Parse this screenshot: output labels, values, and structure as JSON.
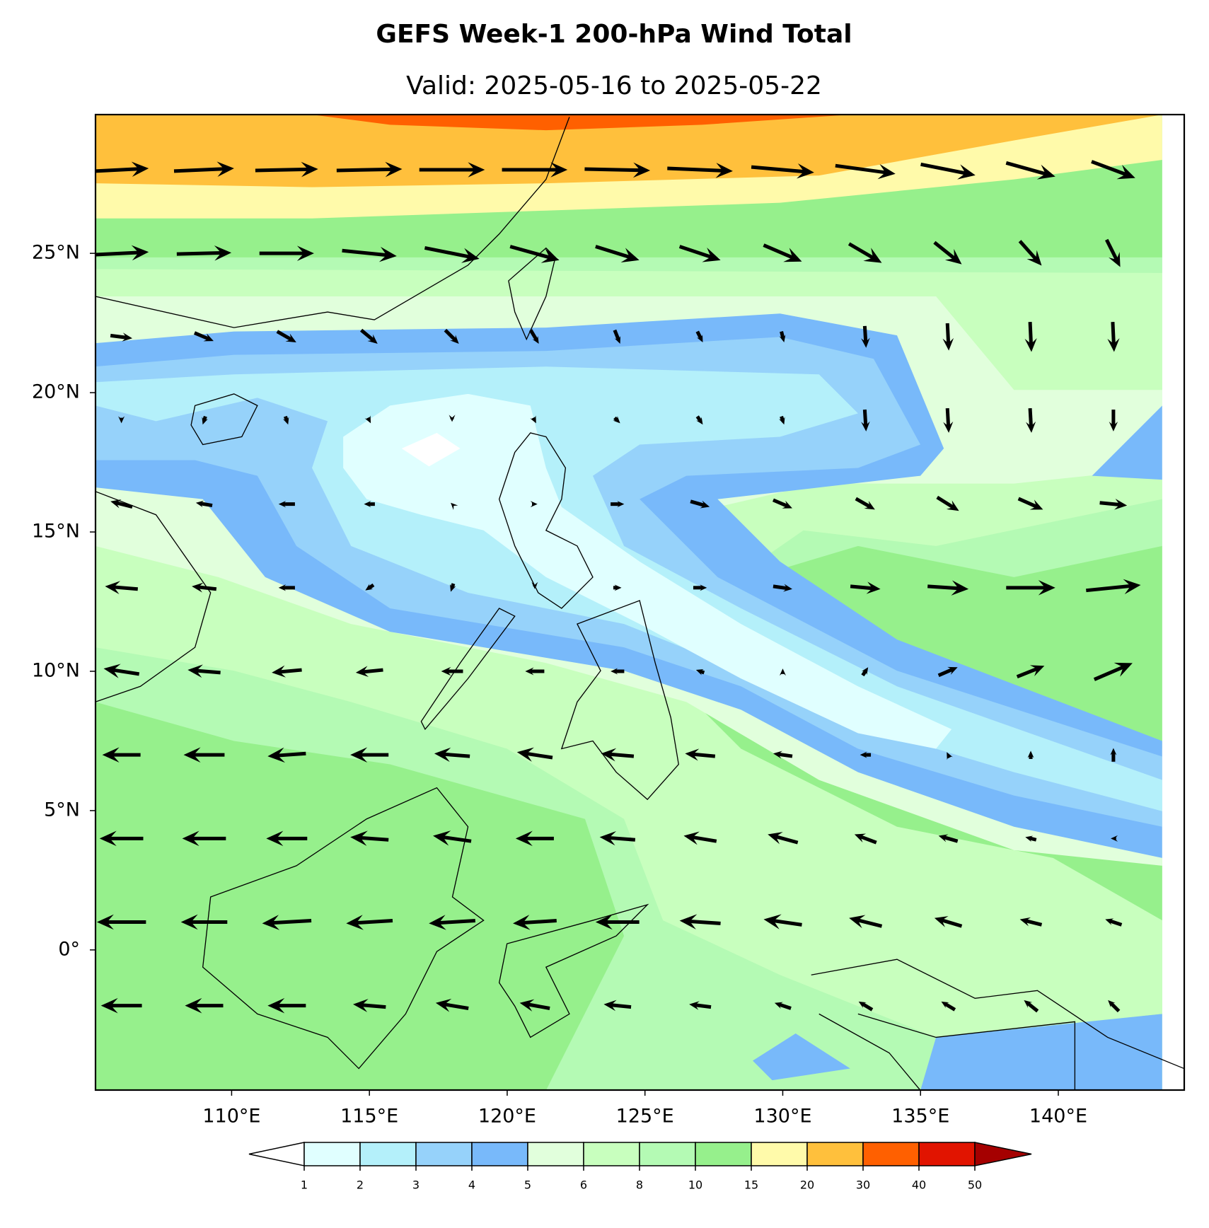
{
  "map": {
    "title": "GEFS Week-1 200-hPa Wind Total",
    "subtitle": "Valid: 2025-05-16 to 2025-05-22",
    "xlim": [
      105.06,
      144.57
    ],
    "ylim": [
      -5.03,
      29.98
    ],
    "xticks": [
      {
        "value": 110,
        "label": "110°E"
      },
      {
        "value": 115,
        "label": "115°E"
      },
      {
        "value": 120,
        "label": "120°E"
      },
      {
        "value": 125,
        "label": "125°E"
      },
      {
        "value": 130,
        "label": "130°E"
      },
      {
        "value": 135,
        "label": "135°E"
      },
      {
        "value": 140,
        "label": "140°E"
      }
    ],
    "yticks": [
      {
        "value": 0,
        "label": "0°"
      },
      {
        "value": 5,
        "label": "5°N"
      },
      {
        "value": 10,
        "label": "10°N"
      },
      {
        "value": 15,
        "label": "15°N"
      },
      {
        "value": 20,
        "label": "20°N"
      },
      {
        "value": 25,
        "label": "25°N"
      }
    ],
    "colorbar": {
      "levels": [
        1,
        2,
        3,
        4,
        5,
        6,
        8,
        10,
        15,
        20,
        30,
        40,
        50
      ],
      "colors": [
        "#ffffff",
        "#e0ffff",
        "#b4f0fa",
        "#96d2fa",
        "#78b9fa",
        "#e1ffdc",
        "#c8ffbe",
        "#b4fab4",
        "#96f08c",
        "#fffaaa",
        "#ffc03c",
        "#ff6000",
        "#e11400",
        "#a50000"
      ]
    },
    "wind": {
      "lons": [
        106,
        109,
        112,
        115,
        118,
        121,
        124,
        127,
        130,
        133,
        136,
        139,
        142
      ],
      "lats": [
        28,
        25,
        22,
        19,
        16,
        13,
        10,
        7,
        4,
        1,
        -2
      ],
      "u": [
        [
          20,
          22,
          23,
          24,
          24,
          24,
          24,
          24,
          23,
          22,
          20,
          18,
          16
        ],
        [
          20,
          20,
          20,
          20,
          20,
          18,
          16,
          15,
          14,
          12,
          10,
          8,
          5
        ],
        [
          8,
          7,
          7,
          6,
          5,
          3,
          2,
          2,
          1,
          0.5,
          0.5,
          0.5,
          0.5
        ],
        [
          0,
          -1,
          1,
          1,
          0,
          1,
          2,
          2,
          1,
          0.5,
          0.5,
          0.5,
          0
        ],
        [
          -8,
          -6,
          -6,
          -4,
          -1,
          2,
          5,
          7,
          7,
          7,
          8,
          9,
          10
        ],
        [
          -12,
          -9,
          -6,
          -3,
          -1,
          0,
          3,
          5,
          7,
          11,
          15,
          18,
          20
        ],
        [
          -13,
          -12,
          -11,
          -10,
          -8,
          -7,
          -5,
          -3,
          0,
          2,
          7,
          10,
          14
        ],
        [
          -14,
          -15,
          -14,
          -14,
          -13,
          -13,
          -12,
          -11,
          -7,
          -4,
          -1,
          0,
          0
        ],
        [
          -16,
          -16,
          -15,
          -14,
          -14,
          -14,
          -13,
          -12,
          -11,
          -8,
          -7,
          -4,
          -2
        ],
        [
          -18,
          -17,
          -18,
          -17,
          -17,
          -16,
          -16,
          -15,
          -14,
          -12,
          -10,
          -8,
          -6
        ],
        [
          -15,
          -14,
          -14,
          -12,
          -12,
          -11,
          -10,
          -8,
          -6,
          -5,
          -5,
          -5,
          -4
        ]
      ],
      "v": [
        [
          1,
          1,
          0.5,
          0.5,
          0,
          0,
          -0.5,
          -1,
          -2,
          -3,
          -4,
          -5,
          -6
        ],
        [
          1,
          0.5,
          0,
          -2,
          -4,
          -5,
          -5,
          -5,
          -6,
          -7,
          -8,
          -9,
          -10
        ],
        [
          -1,
          -3,
          -4,
          -5,
          -5,
          -5,
          -5,
          -4,
          -4,
          -8,
          -10,
          -11,
          -11
        ],
        [
          -2,
          -3,
          -3,
          -2,
          -1,
          -2,
          -2,
          -3,
          -3,
          -8,
          -9,
          -9,
          -8
        ],
        [
          2,
          1,
          0,
          0,
          1,
          0,
          0,
          -2,
          -3,
          -4,
          -5,
          -4,
          -1
        ],
        [
          1,
          1,
          0,
          -2,
          -3,
          -1,
          0,
          0,
          -1,
          -1,
          -1,
          0,
          2
        ],
        [
          2,
          1,
          -1,
          -1,
          0,
          0,
          0,
          1,
          2,
          3,
          3,
          4,
          6
        ],
        [
          0,
          0,
          -1,
          0,
          1,
          2,
          1,
          1,
          1,
          0,
          2,
          3,
          5
        ],
        [
          0,
          0,
          0,
          1,
          2,
          0,
          1,
          2,
          3,
          3,
          2,
          1,
          0
        ],
        [
          0,
          0,
          -1,
          -1,
          -1,
          -1,
          0,
          1,
          2,
          3,
          3,
          2,
          2
        ],
        [
          0,
          0,
          0,
          1,
          2,
          2,
          1,
          1,
          2,
          3,
          3,
          4,
          4
        ]
      ]
    }
  }
}
